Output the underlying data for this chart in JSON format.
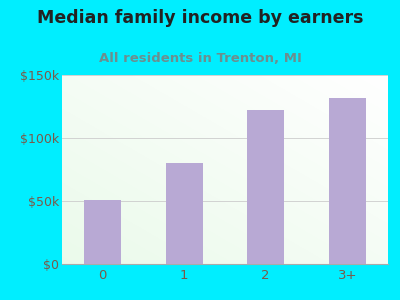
{
  "title": "Median family income by earners",
  "subtitle": "All residents in Trenton, MI",
  "categories": [
    "0",
    "1",
    "2",
    "3+"
  ],
  "values": [
    51000,
    80000,
    122000,
    132000
  ],
  "bar_color": "#b8a9d4",
  "outer_bg": "#00eeff",
  "title_color": "#222222",
  "subtitle_color": "#6b8f8f",
  "tick_label_color": "#7a5a4a",
  "ytick_labels": [
    "$0",
    "$50k",
    "$100k",
    "$150k"
  ],
  "ytick_values": [
    0,
    50000,
    100000,
    150000
  ],
  "ylim": [
    0,
    150000
  ],
  "title_fontsize": 12.5,
  "subtitle_fontsize": 9.5
}
